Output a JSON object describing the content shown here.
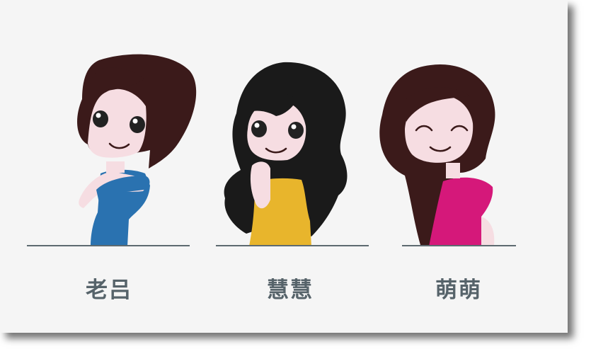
{
  "characters": [
    {
      "name": "老吕",
      "outfit_color": "#2a72b0",
      "hair_color": "#3b1a1a"
    },
    {
      "name": "慧慧",
      "outfit_color": "#e8b52c",
      "hair_color": "#1a1a1a"
    },
    {
      "name": "萌萌",
      "outfit_color": "#d5187a",
      "hair_color": "#3b1a1a"
    }
  ],
  "colors": {
    "skin": "#f6dde2",
    "ground": "#5d6a70",
    "label": "#56636a",
    "background": "#f5f5f5"
  }
}
